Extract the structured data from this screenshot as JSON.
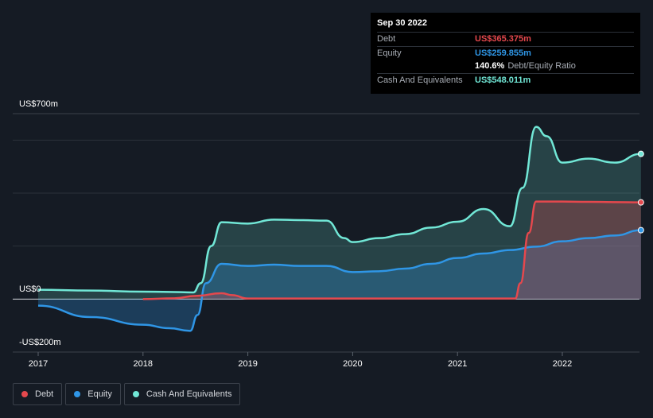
{
  "tooltip": {
    "date": "Sep 30 2022",
    "debt_label": "Debt",
    "debt_value": "US$365.375m",
    "equity_label": "Equity",
    "equity_value": "US$259.855m",
    "ratio_value": "140.6%",
    "ratio_label": "Debt/Equity Ratio",
    "cash_label": "Cash And Equivalents",
    "cash_value": "US$548.011m"
  },
  "legend": {
    "debt": "Debt",
    "equity": "Equity",
    "cash": "Cash And Equivalents"
  },
  "colors": {
    "debt": "#e5484d",
    "equity": "#2f96e6",
    "cash": "#71e7d6",
    "background": "#151b24"
  },
  "chart_data": {
    "type": "area",
    "y_tick_labels": [
      "US$700m",
      "US$0",
      "-US$200m"
    ],
    "x_tick_labels": [
      "2017",
      "2018",
      "2019",
      "2020",
      "2021",
      "2022"
    ],
    "ylim": [
      -200,
      700
    ],
    "xlim": [
      2016.9,
      2022.75
    ],
    "series": [
      {
        "name": "Debt",
        "x": [
          2018.0,
          2018.3,
          2018.5,
          2018.75,
          2018.85,
          2019.0,
          2019.5,
          2020.0,
          2020.5,
          2021.0,
          2021.3,
          2021.5,
          2021.55,
          2021.6,
          2021.68,
          2021.75,
          2022.0,
          2022.25,
          2022.5,
          2022.75
        ],
        "values": [
          0,
          3,
          12,
          22,
          15,
          2,
          2,
          2,
          2,
          2,
          2,
          2,
          2,
          60,
          250,
          368,
          368,
          367,
          366,
          365
        ]
      },
      {
        "name": "Equity",
        "x": [
          2017.0,
          2017.5,
          2018.0,
          2018.25,
          2018.45,
          2018.52,
          2018.6,
          2018.75,
          2019.0,
          2019.25,
          2019.5,
          2019.75,
          2020.0,
          2020.25,
          2020.5,
          2020.75,
          2021.0,
          2021.25,
          2021.5,
          2021.75,
          2022.0,
          2022.25,
          2022.5,
          2022.75
        ],
        "values": [
          -25,
          -68,
          -97,
          -110,
          -120,
          -60,
          60,
          133,
          125,
          130,
          125,
          125,
          102,
          105,
          115,
          133,
          155,
          172,
          185,
          198,
          218,
          230,
          240,
          260
        ]
      },
      {
        "name": "Cash And Equivalents",
        "x": [
          2017.0,
          2017.5,
          2018.0,
          2018.25,
          2018.48,
          2018.55,
          2018.65,
          2018.75,
          2019.0,
          2019.25,
          2019.5,
          2019.75,
          2019.92,
          2020.0,
          2020.25,
          2020.5,
          2020.75,
          2021.0,
          2021.25,
          2021.5,
          2021.62,
          2021.75,
          2021.85,
          2022.0,
          2022.25,
          2022.5,
          2022.75
        ],
        "values": [
          35,
          32,
          28,
          27,
          25,
          60,
          200,
          290,
          285,
          300,
          298,
          296,
          230,
          215,
          230,
          245,
          270,
          292,
          340,
          275,
          420,
          650,
          615,
          515,
          530,
          515,
          548
        ]
      }
    ]
  }
}
